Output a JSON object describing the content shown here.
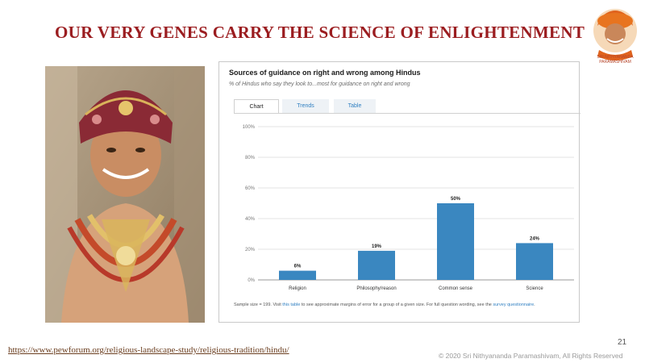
{
  "slide": {
    "title": "OUR VERY GENES CARRY THE SCIENCE OF ENLIGHTENMENT",
    "logo_caption": "SRI NITHYANANDA PARAMASHIVAM",
    "source_url": "https://www.pewforum.org/religious-landscape-study/religious-tradition/hindu/",
    "page_number": "21",
    "copyright": "© 2020 Sri Nithyananda Paramashivam, All Rights Reserved"
  },
  "chart_widget": {
    "tabs": [
      "Chart",
      "Trends",
      "Table"
    ],
    "active_tab": "Chart",
    "footnote_prefix": "Sample size = 199. Visit ",
    "footnote_link1": "this table",
    "footnote_middle": " to see approximate margins of error for a group of a given size. For full question wording, see the ",
    "footnote_link2": "survey questionnaire",
    "footnote_suffix": "."
  },
  "chart_data": {
    "type": "bar",
    "title": "Sources of guidance on right and wrong among Hindus",
    "subtitle": "% of Hindus who say they look to...most for guidance on right and wrong",
    "categories": [
      "Religion",
      "Philosophy/reason",
      "Common sense",
      "Science"
    ],
    "values": [
      6,
      19,
      50,
      24
    ],
    "value_labels": [
      "6%",
      "19%",
      "50%",
      "24%"
    ],
    "yticks": [
      "0%",
      "20%",
      "40%",
      "60%",
      "80%",
      "100%"
    ],
    "ylim": [
      0,
      100
    ],
    "grid": true,
    "bar_color": "#3a87c0"
  },
  "colors": {
    "title": "#9b1d20",
    "bar": "#3a87c0",
    "link": "#2f7fc1"
  }
}
